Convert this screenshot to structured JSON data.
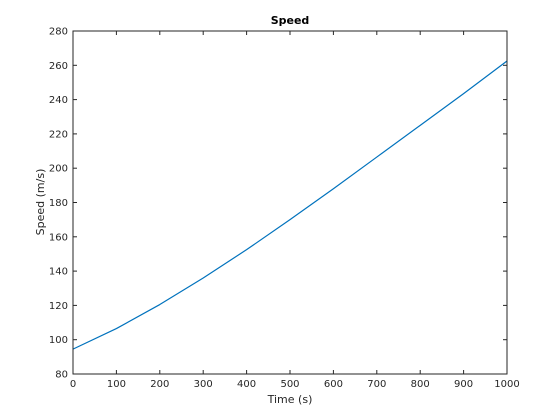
{
  "chart_data": {
    "type": "line",
    "title": "Speed",
    "xlabel": "Time (s)",
    "ylabel": "Speed (m/s)",
    "xlim": [
      0,
      1000
    ],
    "ylim": [
      80,
      280
    ],
    "xticks": [
      0,
      100,
      200,
      300,
      400,
      500,
      600,
      700,
      800,
      900,
      1000
    ],
    "yticks": [
      80,
      100,
      120,
      140,
      160,
      180,
      200,
      220,
      240,
      260,
      280
    ],
    "grid": false,
    "series": [
      {
        "color": "#0072BD",
        "x": [
          0,
          100,
          200,
          300,
          400,
          500,
          600,
          700,
          800,
          900,
          1000
        ],
        "y": [
          94.5,
          106.5,
          120.5,
          136.0,
          152.5,
          170.0,
          188.0,
          206.5,
          225.0,
          243.5,
          262.5
        ]
      }
    ]
  }
}
